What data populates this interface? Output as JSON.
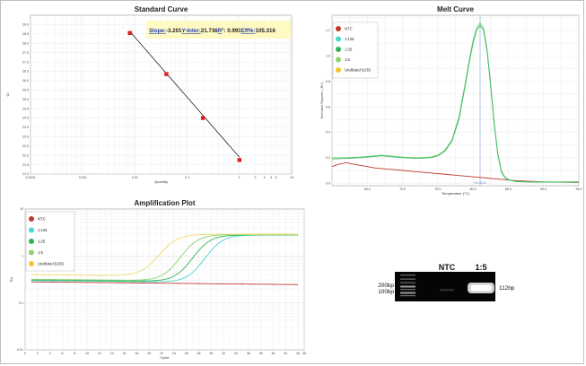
{
  "chart_data": [
    {
      "type": "scatter",
      "title": "Standard Curve",
      "xlabel": "Quantity",
      "ylabel": "Ct",
      "x_scale": "log",
      "xlim": [
        0.0001,
        10
      ],
      "ylim": [
        21.0,
        29.5
      ],
      "x_tick_labels": [
        "0.0001",
        "0.001",
        "0.01",
        "0.1",
        "1",
        "2",
        "3",
        "4",
        "5",
        "10"
      ],
      "y_tick_labels": [
        "21.0",
        "21.5",
        "22.0",
        "22.5",
        "23.0",
        "23.5",
        "24.0",
        "24.5",
        "25.0",
        "25.5",
        "26.0",
        "26.5",
        "27.0",
        "27.5",
        "28.0",
        "28.5",
        "29.0"
      ],
      "points": [
        {
          "x": 0.008,
          "y": 28.55
        },
        {
          "x": 0.04,
          "y": 26.35
        },
        {
          "x": 0.2,
          "y": 24.0
        },
        {
          "x": 1,
          "y": 21.75
        }
      ],
      "fit_line": {
        "x": [
          0.008,
          1
        ],
        "y": [
          28.63,
          21.9
        ]
      },
      "stats": {
        "slope_label": "Slope:",
        "slope_value": "-3.201",
        "yinter_label": "Y-Inter:",
        "yinter_value": "21.736",
        "r2_label": "R",
        "r2_sup": "2",
        "r2_value": ": 0.991",
        "eff_label": "Eff%:",
        "eff_value": "105.316"
      },
      "colors": {
        "points": "#e01b1b",
        "line": "#222222",
        "stats_bg": "#fff9c4"
      }
    },
    {
      "type": "line",
      "title": "Melt Curve",
      "xlabel": "Temperature (°C)",
      "ylabel": "Derivative Reporter (-Rn')",
      "xlim": [
        60,
        95
      ],
      "ylim": [
        -0.02,
        1.32
      ],
      "x_tick_labels": [
        "65.0",
        "70.0",
        "75.0",
        "80.0",
        "85.0",
        "90.0",
        "95.0"
      ],
      "y_tick_labels": [
        "0.0",
        "0.2",
        "0.4",
        "0.6",
        "0.8",
        "1.0",
        "1.2"
      ],
      "threshold": {
        "x": 81.0,
        "label": "Tm: 81.01"
      },
      "legend": [
        "NTC",
        "1:125",
        "1:25",
        "1:5",
        "Undiluted (U/D)"
      ],
      "series": [
        {
          "name": "NTC",
          "color": "#c0392b",
          "x": [
            60,
            61,
            62,
            63,
            64,
            65,
            66,
            68,
            70,
            72,
            74,
            76,
            78,
            80,
            82,
            84,
            86,
            88,
            90,
            92,
            95
          ],
          "y": [
            0.13,
            0.15,
            0.16,
            0.15,
            0.14,
            0.13,
            0.12,
            0.11,
            0.1,
            0.09,
            0.08,
            0.07,
            0.06,
            0.05,
            0.04,
            0.03,
            0.02,
            0.015,
            0.01,
            0.008,
            0.005
          ]
        },
        {
          "name": "1:5",
          "color": "#6dd36d",
          "x": [
            60,
            62,
            64,
            66,
            67,
            68,
            70,
            72,
            74,
            75,
            76,
            77,
            78,
            79,
            79.5,
            80,
            80.5,
            81,
            81.5,
            82,
            82.5,
            83,
            83.5,
            84,
            84.5,
            85,
            86,
            88,
            90,
            92,
            95
          ],
          "y": [
            0.2,
            0.2,
            0.205,
            0.215,
            0.22,
            0.215,
            0.205,
            0.2,
            0.205,
            0.22,
            0.26,
            0.34,
            0.52,
            0.82,
            0.98,
            1.12,
            1.22,
            1.26,
            1.22,
            1.05,
            0.78,
            0.48,
            0.24,
            0.1,
            0.05,
            0.03,
            0.015,
            0.01,
            0.01,
            0.01,
            0.01
          ]
        },
        {
          "name": "1:25",
          "color": "#3fb96a",
          "x": [
            60,
            62,
            64,
            66,
            67,
            68,
            70,
            72,
            74,
            75,
            76,
            77,
            78,
            79,
            79.5,
            80,
            80.5,
            81,
            81.5,
            82,
            82.5,
            83,
            83.5,
            84,
            84.5,
            85,
            86,
            88,
            90,
            92,
            95
          ],
          "y": [
            0.19,
            0.195,
            0.2,
            0.21,
            0.215,
            0.21,
            0.2,
            0.195,
            0.2,
            0.215,
            0.25,
            0.33,
            0.5,
            0.8,
            0.96,
            1.1,
            1.2,
            1.24,
            1.2,
            1.03,
            0.76,
            0.46,
            0.23,
            0.09,
            0.045,
            0.025,
            0.012,
            0.008,
            0.008,
            0.008,
            0.008
          ]
        }
      ]
    },
    {
      "type": "line",
      "title": "Amplification Plot",
      "xlabel": "Cycle",
      "ylabel": "Rn",
      "y_scale": "log",
      "xlim": [
        0,
        45
      ],
      "ylim": [
        0.01,
        10
      ],
      "x_tick_labels": [
        "0",
        "2",
        "4",
        "6",
        "8",
        "10",
        "12",
        "14",
        "16",
        "18",
        "20",
        "22",
        "24",
        "26",
        "28",
        "30",
        "32",
        "34",
        "36",
        "38",
        "40",
        "42",
        "44",
        "45"
      ],
      "y_tick_labels": [
        "0.01",
        "0.1",
        "1",
        "10"
      ],
      "legend": [
        "NTC",
        "1:125",
        "1:25",
        "1:5",
        "Undiluted (U/D)"
      ],
      "series": [
        {
          "name": "NTC",
          "color": "#c0392b",
          "base": 0.28,
          "plateau": 0.28,
          "midpoint": 0,
          "steepness": 1,
          "end_value": 0.245
        },
        {
          "name": "1:125",
          "color": "#45d7d0",
          "base": 0.3,
          "plateau": 2.8,
          "midpoint": 30.5,
          "steepness": 0.75,
          "end_value": 2.8
        },
        {
          "name": "1:25",
          "color": "#2fb35a",
          "base": 0.31,
          "plateau": 2.8,
          "midpoint": 28.5,
          "steepness": 0.75,
          "end_value": 2.8
        },
        {
          "name": "1:5",
          "color": "#8bd46a",
          "base": 0.32,
          "plateau": 2.85,
          "midpoint": 26.5,
          "steepness": 0.75,
          "end_value": 2.85
        },
        {
          "name": "Undiluted (U/D)",
          "color": "#f0dc68",
          "base": 0.4,
          "plateau": 2.9,
          "midpoint": 23.0,
          "steepness": 0.72,
          "end_value": 2.9
        }
      ]
    }
  ],
  "gel": {
    "lane_labels": [
      "NTC",
      "1:5"
    ],
    "ladder_labels": [
      "200bp",
      "100bp"
    ],
    "band_label": "112bp"
  }
}
